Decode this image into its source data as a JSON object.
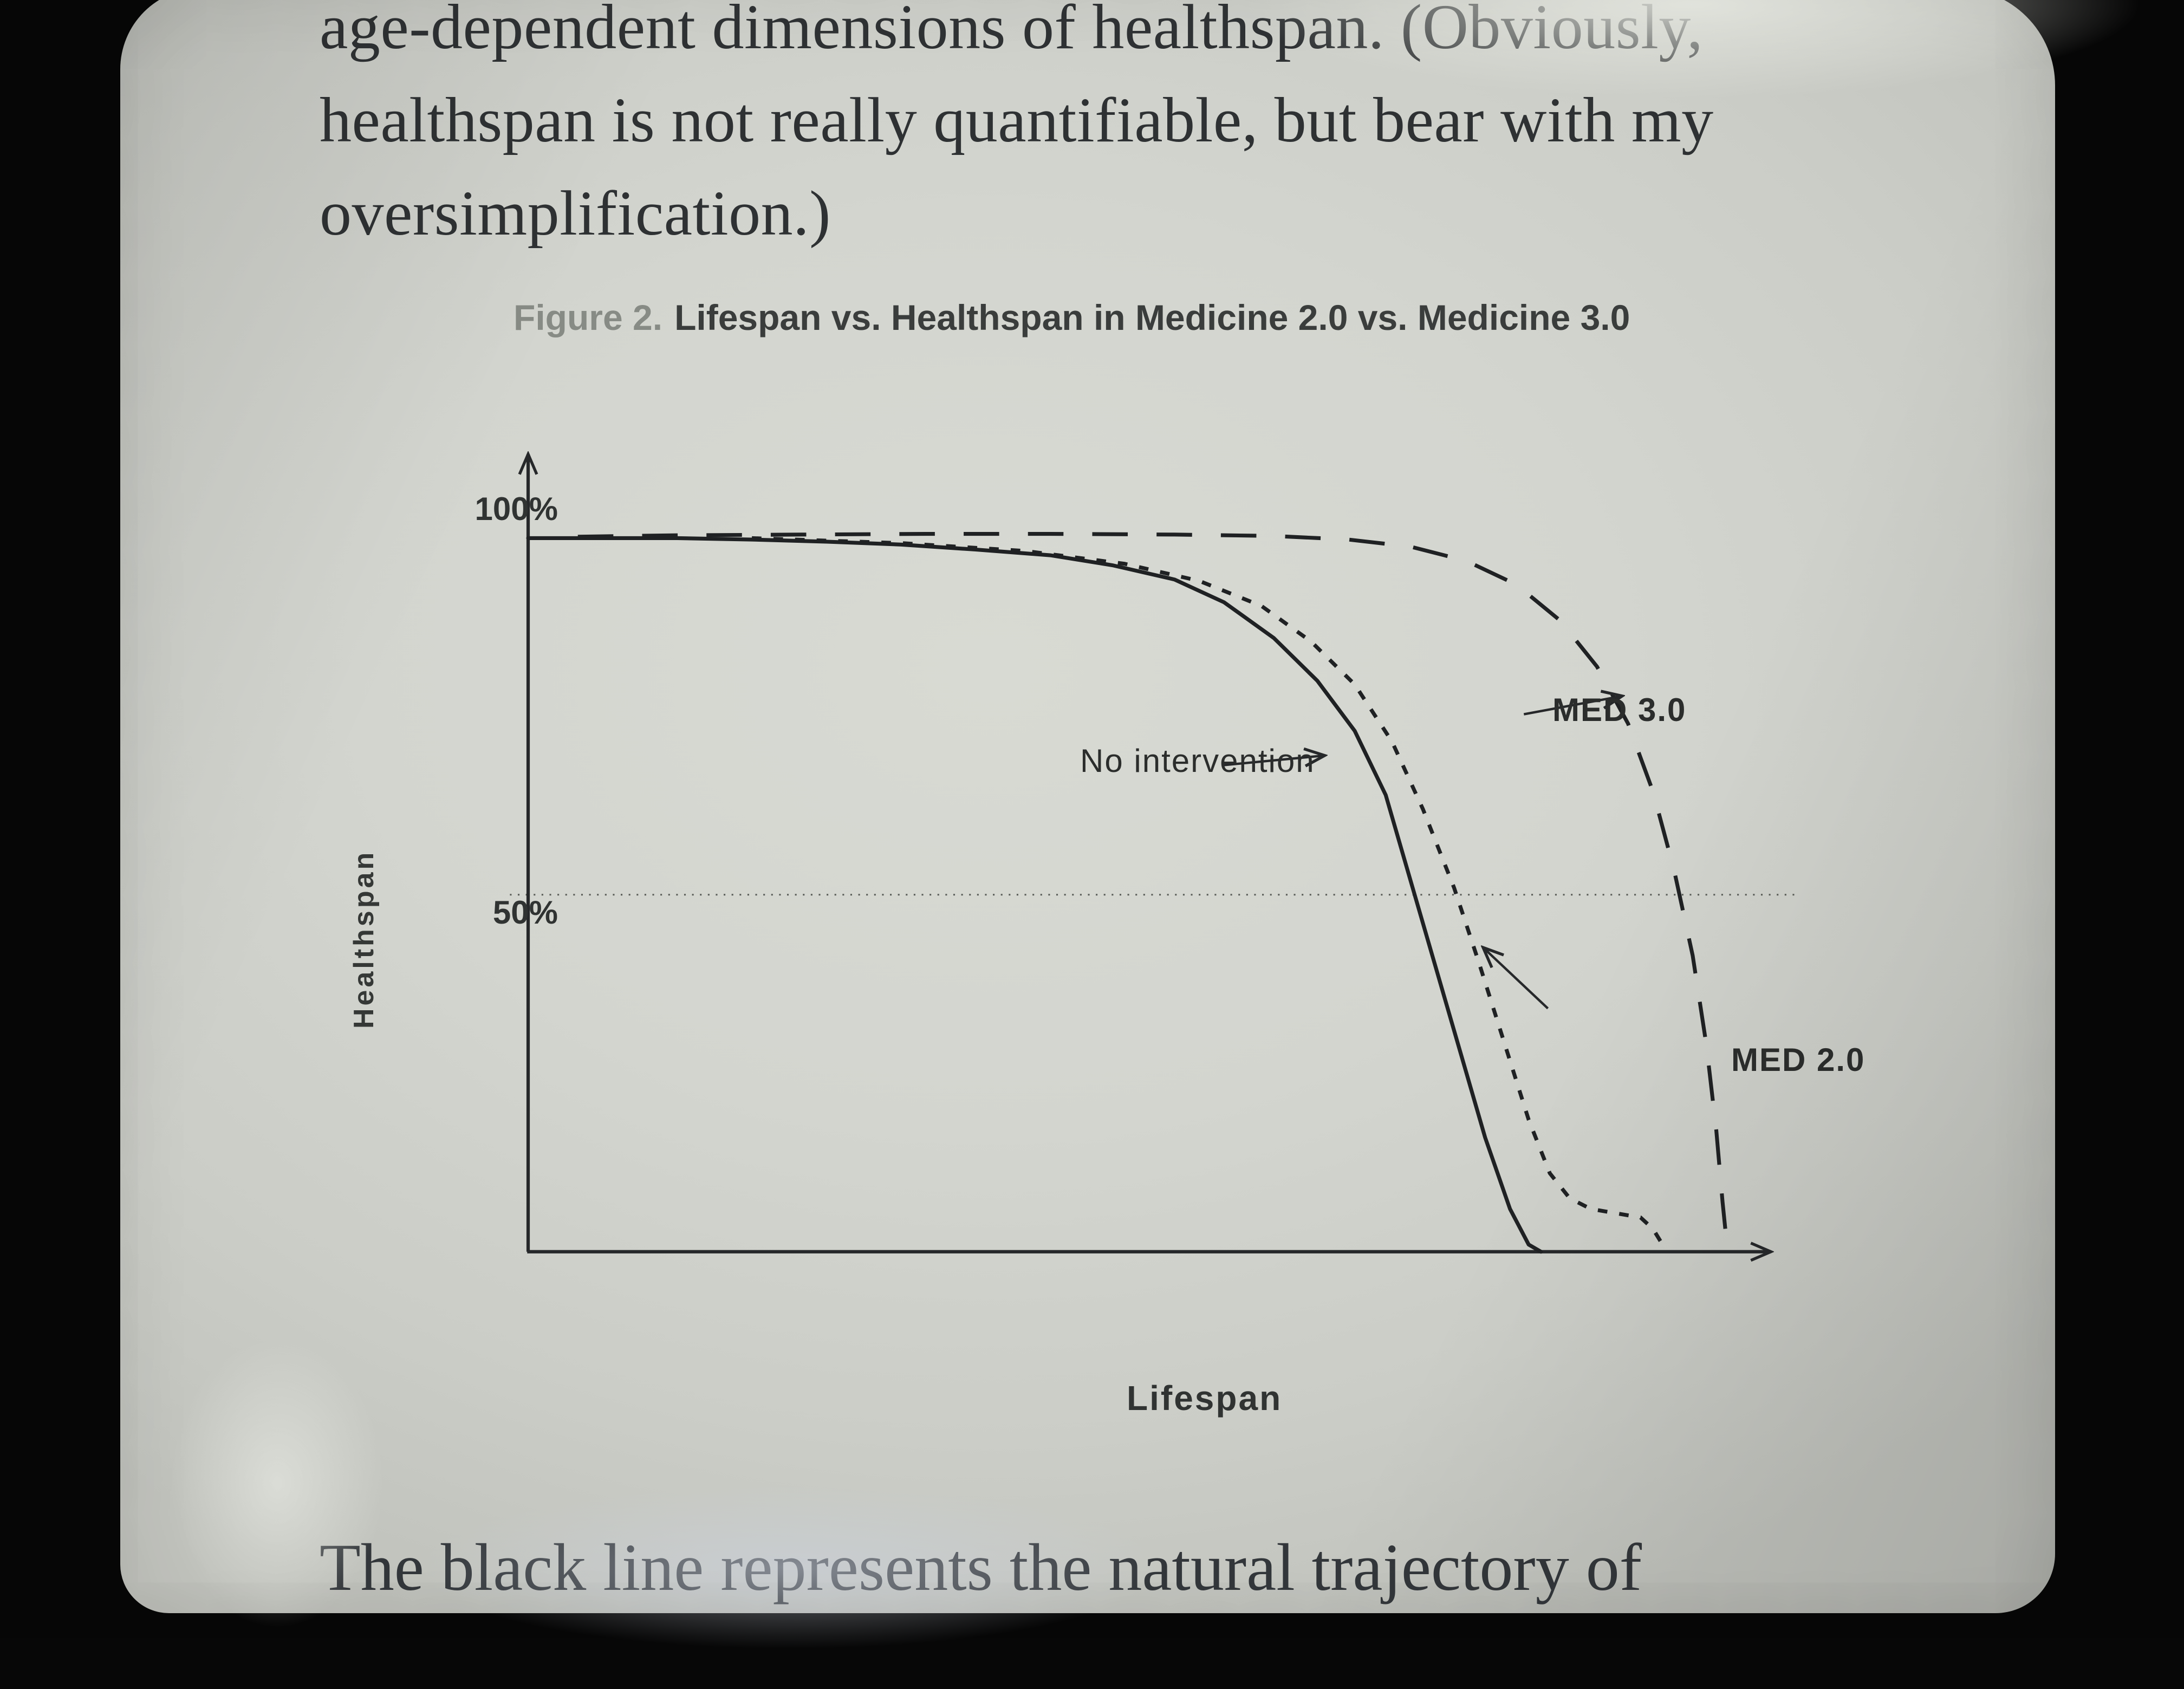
{
  "page": {
    "top_lines": [
      "age-dependent dimensions of healthspan. (Obviously,",
      "healthspan is not really quantifiable, but bear with my",
      "oversimplification.)"
    ],
    "bottom_line": "The black line represents the natural trajectory of"
  },
  "figure": {
    "caption_prefix": "Figure 2.",
    "caption_title": "Lifespan vs. Healthspan in Medicine 2.0 vs. Medicine 3.0"
  },
  "chart_data": {
    "type": "line",
    "title": "Figure 2. Lifespan vs. Healthspan in Medicine 2.0 vs. Medicine 3.0",
    "xlabel": "Lifespan",
    "ylabel": "Healthspan",
    "yticks": [
      "100%",
      "50%"
    ],
    "ytick_values": [
      100,
      50
    ],
    "ylim": [
      0,
      100
    ],
    "xlim": [
      0,
      1
    ],
    "grid": "dotted horizontal line at 50%",
    "legend_position": "inline annotations with arrows",
    "series": [
      {
        "name": "No intervention",
        "style": "solid",
        "x": [
          0,
          0.06,
          0.12,
          0.18,
          0.24,
          0.3,
          0.36,
          0.42,
          0.47,
          0.52,
          0.56,
          0.6,
          0.635,
          0.665,
          0.69,
          0.71,
          0.73,
          0.75,
          0.77,
          0.79,
          0.805,
          0.815
        ],
        "y": [
          100,
          100,
          100,
          99.8,
          99.5,
          99.1,
          98.4,
          97.6,
          96.2,
          94.2,
          91,
          86,
          80,
          73,
          64,
          52,
          40,
          28,
          16,
          6,
          1,
          0
        ]
      },
      {
        "name": "MED 2.0",
        "style": "dashed-short",
        "x": [
          0.18,
          0.3,
          0.4,
          0.48,
          0.54,
          0.59,
          0.63,
          0.665,
          0.695,
          0.72,
          0.745,
          0.765,
          0.785,
          0.805,
          0.822,
          0.838,
          0.855,
          0.875,
          0.895,
          0.905,
          0.911
        ],
        "y": [
          100,
          99.3,
          98.2,
          96.4,
          94,
          90.5,
          85.5,
          79.5,
          71.5,
          62,
          51,
          40.5,
          29.5,
          18.5,
          11,
          7.5,
          6,
          5.4,
          4.8,
          3.2,
          1.5
        ]
      },
      {
        "name": "MED 3.0",
        "style": "dashed-long",
        "x": [
          0.04,
          0.12,
          0.22,
          0.32,
          0.42,
          0.52,
          0.6,
          0.66,
          0.71,
          0.755,
          0.795,
          0.83,
          0.86,
          0.885,
          0.905,
          0.922,
          0.937,
          0.948,
          0.956,
          0.961,
          0.9645
        ],
        "y": [
          100.2,
          100.4,
          100.5,
          100.6,
          100.6,
          100.5,
          100.3,
          99.8,
          98.8,
          96.8,
          93.5,
          88.5,
          82,
          74,
          64.5,
          53.5,
          41.5,
          29,
          17,
          7,
          1
        ]
      }
    ]
  },
  "colors": {
    "ink": "#26282a",
    "screen": "#d3d5cf",
    "caption_muted": "#878b85",
    "bezel": "#060606"
  }
}
